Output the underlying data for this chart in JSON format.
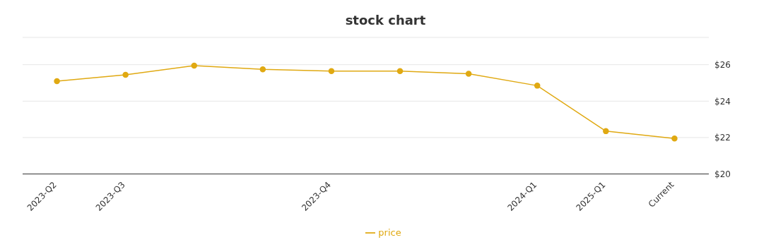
{
  "chart_data": {
    "type": "line",
    "title": "stock chart",
    "categories": [
      "2023-Q2",
      "2023-Q3",
      null,
      null,
      "2023-Q4",
      null,
      null,
      "2024-Q1",
      "2025-Q1",
      "Current"
    ],
    "series": [
      {
        "name": "price",
        "color": "#e0a912",
        "values": [
          25.1,
          25.45,
          25.95,
          25.75,
          25.65,
          25.65,
          25.5,
          24.85,
          22.35,
          21.95
        ]
      }
    ],
    "ylim": [
      20,
      27.5
    ],
    "yticks": [
      {
        "value": 20,
        "label": "$20"
      },
      {
        "value": 22,
        "label": "$22"
      },
      {
        "value": 24,
        "label": "$24"
      },
      {
        "value": 26,
        "label": "$26"
      }
    ],
    "grid": "y",
    "legend": "bottom",
    "marker": "circle",
    "line_style": "solid"
  }
}
